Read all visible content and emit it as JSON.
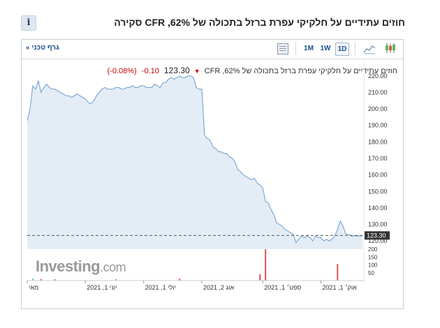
{
  "header": {
    "title": "חוזים עתידיים על חלקיקי עפרת ברזל בתכולה של 62%, CFR סקירה",
    "info_label": "i"
  },
  "toolbar": {
    "tech_chart_link": "גרף טכני »",
    "periods": [
      "1M",
      "1W",
      "1D"
    ],
    "active_period": "1D",
    "icons": [
      "chart-type-table-icon",
      "area-chart-icon",
      "candlestick-icon"
    ]
  },
  "legend": {
    "instrument": "חוזים עתידיים על חלקיקי עפרת ברזל בתכולה של 62%, CFR",
    "last": "123.30",
    "change": "-0.10",
    "change_pct": "(-0.08%)",
    "direction": "down"
  },
  "logo": {
    "text": "Investing",
    "suffix": ".com"
  },
  "colors": {
    "line": "#7fa9d4",
    "area": "#e4edf6",
    "volume": "#d9534f",
    "volume_alt": "#7cc47c",
    "down": "#cc0000"
  },
  "chart_data": {
    "type": "area",
    "title": "",
    "xlabel": "",
    "ylabel": "",
    "ylim": [
      115,
      225
    ],
    "y_ticks": [
      "220.00",
      "210.00",
      "200.00",
      "190.00",
      "180.00",
      "170.00",
      "160.00",
      "150.00",
      "140.00",
      "130.00",
      "120.00"
    ],
    "y_tick_values": [
      220,
      210,
      200,
      190,
      180,
      170,
      160,
      150,
      140,
      130,
      120
    ],
    "x_tick_labels": [
      "מאי",
      "יוני 1, 2021",
      "יולי 1, 2021",
      "אוג 2, 2021",
      "ספט׳ 1, 2021",
      "אוק׳ 1, 2021"
    ],
    "x_tick_index": [
      0,
      21,
      42,
      63,
      85,
      106
    ],
    "last_value_label": "123.30",
    "last_value": 123.3,
    "series": [
      {
        "values": [
          193,
          200,
          214,
          212,
          217,
          210,
          213,
          215,
          213,
          212,
          212,
          211,
          210,
          209,
          208,
          208,
          207,
          208,
          209,
          208,
          207,
          206,
          204,
          203,
          205,
          208,
          210,
          212,
          213,
          212,
          212,
          212,
          213,
          213,
          212,
          212,
          213,
          213,
          214,
          213,
          213,
          214,
          214,
          213,
          213,
          213,
          215,
          214,
          213,
          216,
          216,
          218,
          219,
          218,
          219,
          220,
          219,
          219,
          220,
          220,
          219,
          213,
          212,
          212,
          184,
          182,
          181,
          177,
          176,
          174,
          174,
          173,
          173,
          171,
          170,
          168,
          163,
          162,
          160,
          159,
          158,
          157,
          158,
          155,
          154,
          152,
          144,
          143,
          139,
          136,
          131,
          130,
          129,
          127,
          126,
          125,
          124,
          119,
          121,
          123,
          122,
          123,
          122,
          120,
          123,
          122,
          122,
          120,
          121,
          120,
          121,
          123,
          127,
          132,
          129,
          124,
          124,
          123,
          123,
          123,
          123,
          123.3
        ]
      }
    ],
    "volume": {
      "ylim": [
        0,
        200
      ],
      "y_ticks": [
        "200",
        "150",
        "100",
        "50"
      ],
      "y_tick_values": [
        200,
        150,
        100,
        50
      ],
      "bars": [
        {
          "i": 2,
          "v": 12,
          "c": "alt"
        },
        {
          "i": 5,
          "v": 10,
          "c": "main"
        },
        {
          "i": 10,
          "v": 8,
          "c": "main"
        },
        {
          "i": 32,
          "v": 10,
          "c": "alt"
        },
        {
          "i": 55,
          "v": 12,
          "c": "main"
        },
        {
          "i": 84,
          "v": 40,
          "c": "main"
        },
        {
          "i": 86,
          "v": 200,
          "c": "main"
        },
        {
          "i": 112,
          "v": 105,
          "c": "main"
        }
      ]
    }
  }
}
